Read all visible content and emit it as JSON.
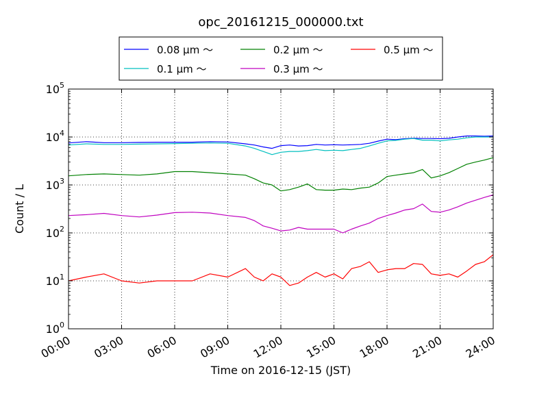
{
  "chart_data": {
    "type": "line",
    "title": "opc_20161215_000000.txt",
    "xlabel": "Time on 2016-12-15 (JST)",
    "ylabel": "Count / L",
    "x_unit": "hours",
    "xlim": [
      0,
      24
    ],
    "ylim": [
      1,
      100000
    ],
    "y_scale": "log",
    "grid": true,
    "legend_position": "top-center",
    "x_ticks": [
      {
        "value": 0,
        "label": "00:00"
      },
      {
        "value": 3,
        "label": "03:00"
      },
      {
        "value": 6,
        "label": "06:00"
      },
      {
        "value": 9,
        "label": "09:00"
      },
      {
        "value": 12,
        "label": "12:00"
      },
      {
        "value": 15,
        "label": "15:00"
      },
      {
        "value": 18,
        "label": "18:00"
      },
      {
        "value": 21,
        "label": "21:00"
      },
      {
        "value": 24,
        "label": "24:00"
      }
    ],
    "y_ticks": [
      {
        "value": 1,
        "base": "10",
        "exp": "0"
      },
      {
        "value": 10,
        "base": "10",
        "exp": "1"
      },
      {
        "value": 100,
        "base": "10",
        "exp": "2"
      },
      {
        "value": 1000,
        "base": "10",
        "exp": "3"
      },
      {
        "value": 10000,
        "base": "10",
        "exp": "4"
      },
      {
        "value": 100000,
        "base": "10",
        "exp": "5"
      }
    ],
    "x": [
      0,
      1,
      2,
      3,
      4,
      5,
      6,
      7,
      8,
      9,
      10,
      10.5,
      11,
      11.5,
      12,
      12.5,
      13,
      13.5,
      14,
      14.5,
      15,
      15.5,
      16,
      16.5,
      17,
      17.5,
      18,
      18.5,
      19,
      19.5,
      20,
      20.5,
      21,
      21.5,
      22,
      22.5,
      23,
      23.5,
      24
    ],
    "series": [
      {
        "name": "0.08 μm ～",
        "color": "#0000ff",
        "values": [
          7500,
          8000,
          7600,
          7600,
          7700,
          7800,
          7800,
          7800,
          8000,
          7900,
          7200,
          6800,
          6200,
          5800,
          6600,
          6800,
          6500,
          6600,
          7000,
          6800,
          6900,
          6800,
          6900,
          7000,
          7400,
          8200,
          9000,
          8800,
          9200,
          9400,
          9300,
          9300,
          9200,
          9400,
          10000,
          10500,
          10500,
          10400,
          10500
        ]
      },
      {
        "name": "0.1 μm ～",
        "color": "#00bfbf",
        "values": [
          6800,
          7200,
          7000,
          7000,
          7100,
          7200,
          7300,
          7400,
          7500,
          7400,
          6500,
          5800,
          5000,
          4300,
          4800,
          5000,
          5000,
          5200,
          5500,
          5200,
          5300,
          5200,
          5500,
          5800,
          6500,
          7400,
          8300,
          8500,
          9000,
          9300,
          8600,
          8600,
          8300,
          8700,
          9000,
          9600,
          10000,
          10000,
          10000
        ]
      },
      {
        "name": "0.2 μm ～",
        "color": "#008000",
        "values": [
          1550,
          1650,
          1700,
          1650,
          1600,
          1700,
          1900,
          1900,
          1800,
          1700,
          1600,
          1350,
          1100,
          1000,
          750,
          800,
          900,
          1050,
          800,
          780,
          780,
          820,
          800,
          860,
          900,
          1100,
          1500,
          1600,
          1700,
          1800,
          2100,
          1400,
          1550,
          1800,
          2200,
          2700,
          3000,
          3300,
          3700
        ]
      },
      {
        "name": "0.3 μm ～",
        "color": "#bf00bf",
        "values": [
          230,
          240,
          255,
          230,
          215,
          235,
          265,
          270,
          260,
          230,
          210,
          180,
          140,
          125,
          110,
          115,
          130,
          120,
          120,
          120,
          120,
          100,
          120,
          140,
          160,
          200,
          230,
          260,
          300,
          320,
          400,
          280,
          270,
          300,
          350,
          420,
          480,
          550,
          620
        ]
      },
      {
        "name": "0.5 μm ～",
        "color": "#ff0000",
        "values": [
          10,
          12,
          14,
          10,
          9,
          10,
          10,
          10,
          14,
          12,
          18,
          12,
          10,
          14,
          12,
          8,
          9,
          12,
          15,
          12,
          14,
          11,
          18,
          20,
          25,
          15,
          17,
          18,
          18,
          23,
          22,
          14,
          13,
          14,
          12,
          16,
          22,
          25,
          35
        ]
      }
    ]
  }
}
